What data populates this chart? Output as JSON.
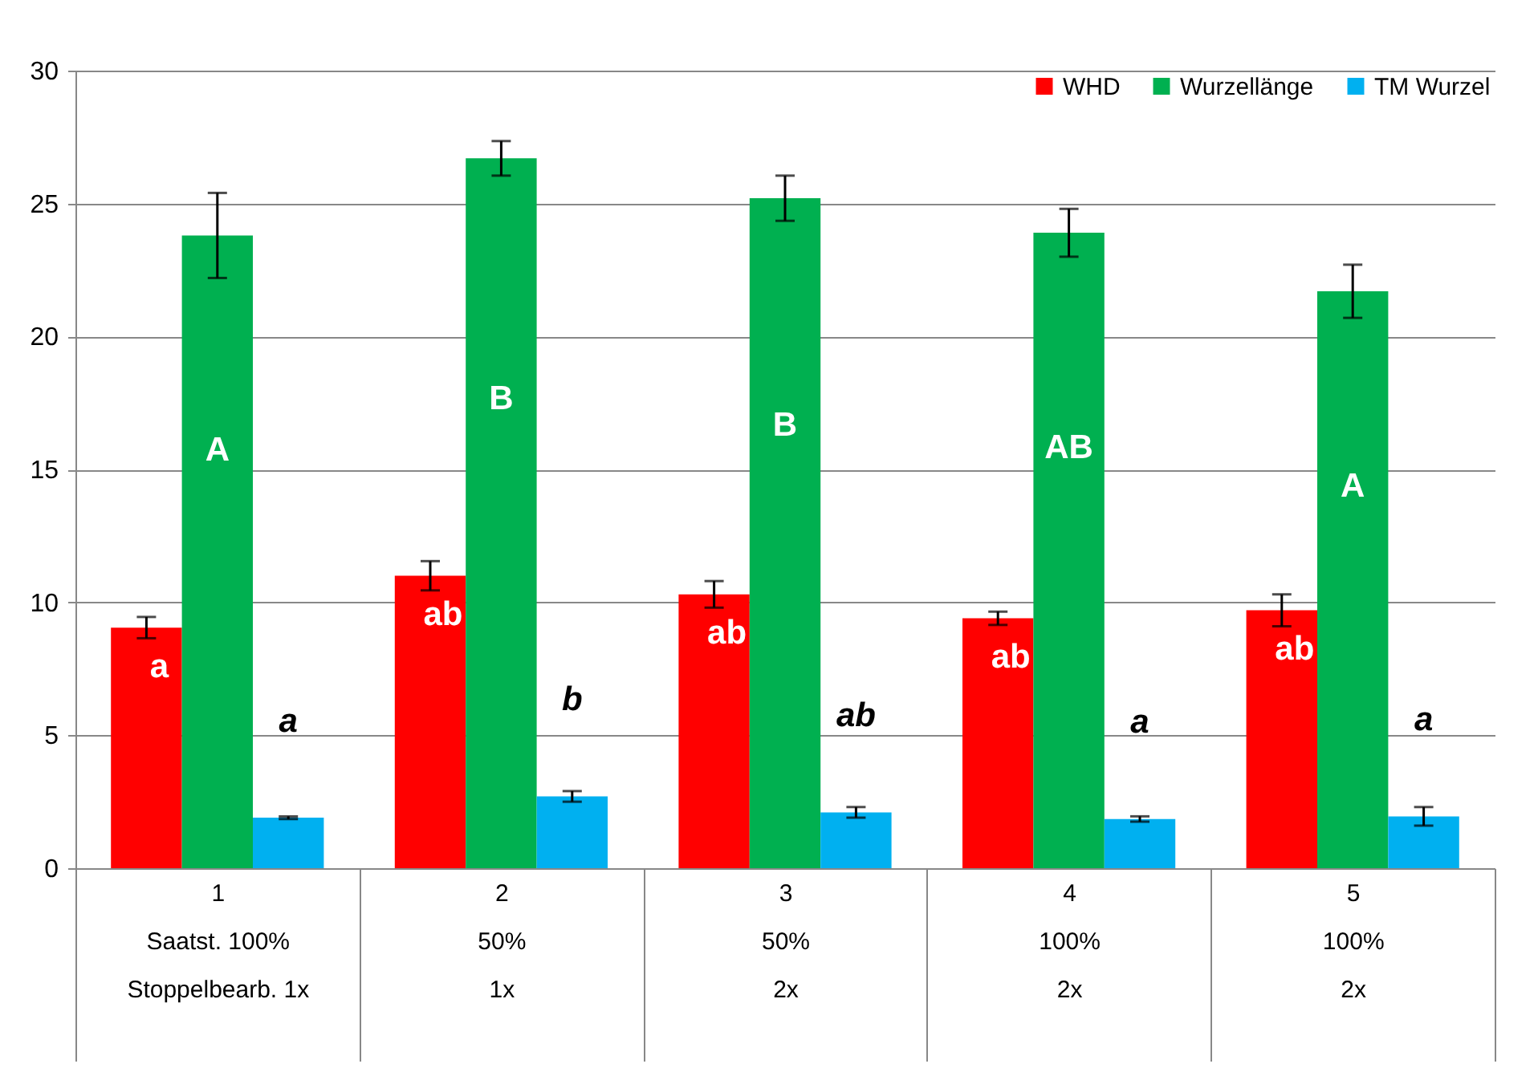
{
  "chart_data": {
    "type": "bar",
    "categories": [
      "1\nSaatst. 100%\nStoppelbearb. 1x",
      "2\n50%\n1x",
      "3\n50%\n2x",
      "4\n100%\n2x",
      "5\n100%\n2x"
    ],
    "series": [
      {
        "name": "WHD",
        "color": "#ff0000",
        "values": [
          9.05,
          11.0,
          10.3,
          9.4,
          9.7
        ],
        "errors": [
          0.4,
          0.55,
          0.5,
          0.25,
          0.6
        ],
        "value_labels": [
          "a",
          "ab",
          "ab",
          "ab",
          "ab"
        ]
      },
      {
        "name": "Wurzellänge",
        "color": "#00b050",
        "values": [
          23.8,
          26.7,
          25.2,
          23.9,
          21.7
        ],
        "errors": [
          1.6,
          0.65,
          0.85,
          0.9,
          1.0
        ],
        "value_labels": [
          "A",
          "B",
          "B",
          "AB",
          "A"
        ]
      },
      {
        "name": "TM Wurzel",
        "color": "#00b0f0",
        "values": [
          1.9,
          2.7,
          2.1,
          1.85,
          1.95
        ],
        "errors": [
          0.05,
          0.2,
          0.2,
          0.1,
          0.35
        ],
        "value_labels": [
          "a",
          "b",
          "ab",
          "a",
          "a"
        ]
      }
    ],
    "ylim": [
      0,
      30
    ],
    "yticks": [
      0,
      5,
      10,
      15,
      20,
      25,
      30
    ],
    "grid": "y",
    "legend": "top right"
  }
}
